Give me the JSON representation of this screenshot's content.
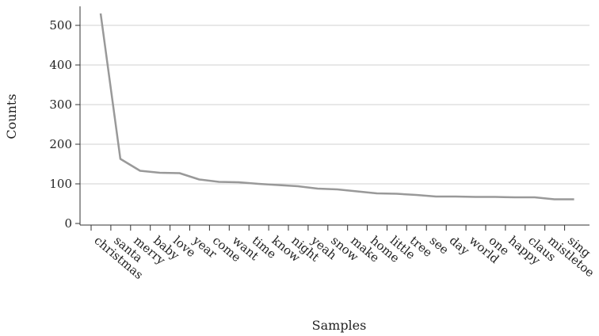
{
  "chart_data": {
    "type": "line",
    "xlabel": "Samples",
    "ylabel": "Counts",
    "categories": [
      "christmas",
      "santa",
      "merry",
      "baby",
      "love",
      "year",
      "come",
      "want",
      "time",
      "know",
      "night",
      "yeah",
      "snow",
      "make",
      "home",
      "little",
      "tree",
      "see",
      "day",
      "world",
      "one",
      "happy",
      "claus",
      "mistletoe",
      "sing"
    ],
    "values": [
      530,
      163,
      133,
      128,
      127,
      111,
      105,
      104,
      100,
      97,
      94,
      88,
      86,
      81,
      76,
      75,
      72,
      68,
      68,
      67,
      67,
      66,
      66,
      61,
      61
    ],
    "y_ticks": [
      0,
      100,
      200,
      300,
      400,
      500
    ],
    "ylim": [
      -10,
      540
    ],
    "grid": "horizontal",
    "line_color": "#999999",
    "grid_color": "#d0d0d0"
  }
}
